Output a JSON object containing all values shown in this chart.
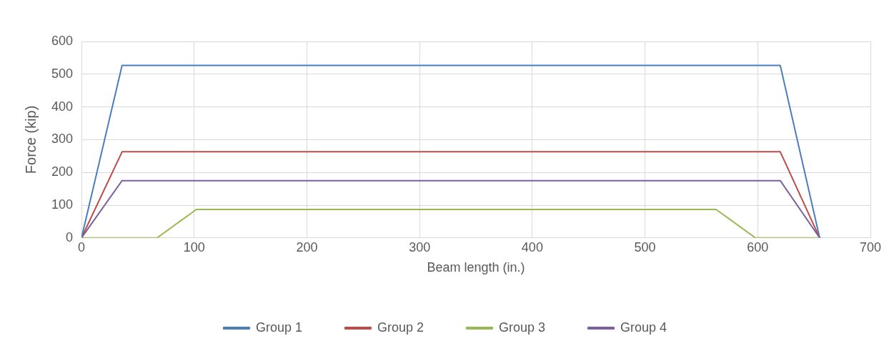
{
  "chart_data": {
    "type": "line",
    "xlabel": "Beam length (in.)",
    "ylabel": "Force (kip)",
    "xlim": [
      0,
      700
    ],
    "xticks": [
      0,
      100,
      200,
      300,
      400,
      500,
      600,
      700
    ],
    "ylim": [
      0,
      600
    ],
    "yticks": [
      0,
      100,
      200,
      300,
      400,
      500,
      600
    ],
    "grid": true,
    "legend": "bottom",
    "marker": "none",
    "series": [
      {
        "name": "Group 1",
        "color": "#4a7ebb",
        "x": [
          0,
          36,
          620,
          655
        ],
        "values": [
          0,
          527,
          527,
          0
        ]
      },
      {
        "name": "Group 2",
        "color": "#be4b48",
        "x": [
          0,
          36,
          620,
          655
        ],
        "values": [
          0,
          263,
          263,
          0
        ]
      },
      {
        "name": "Group 3",
        "color": "#98b954",
        "x": [
          0,
          67,
          102,
          563,
          598,
          655
        ],
        "values": [
          0,
          0,
          87,
          87,
          0,
          0
        ]
      },
      {
        "name": "Group 4",
        "color": "#7d60a0",
        "x": [
          0,
          36,
          620,
          655
        ],
        "values": [
          0,
          175,
          175,
          0
        ]
      }
    ]
  }
}
